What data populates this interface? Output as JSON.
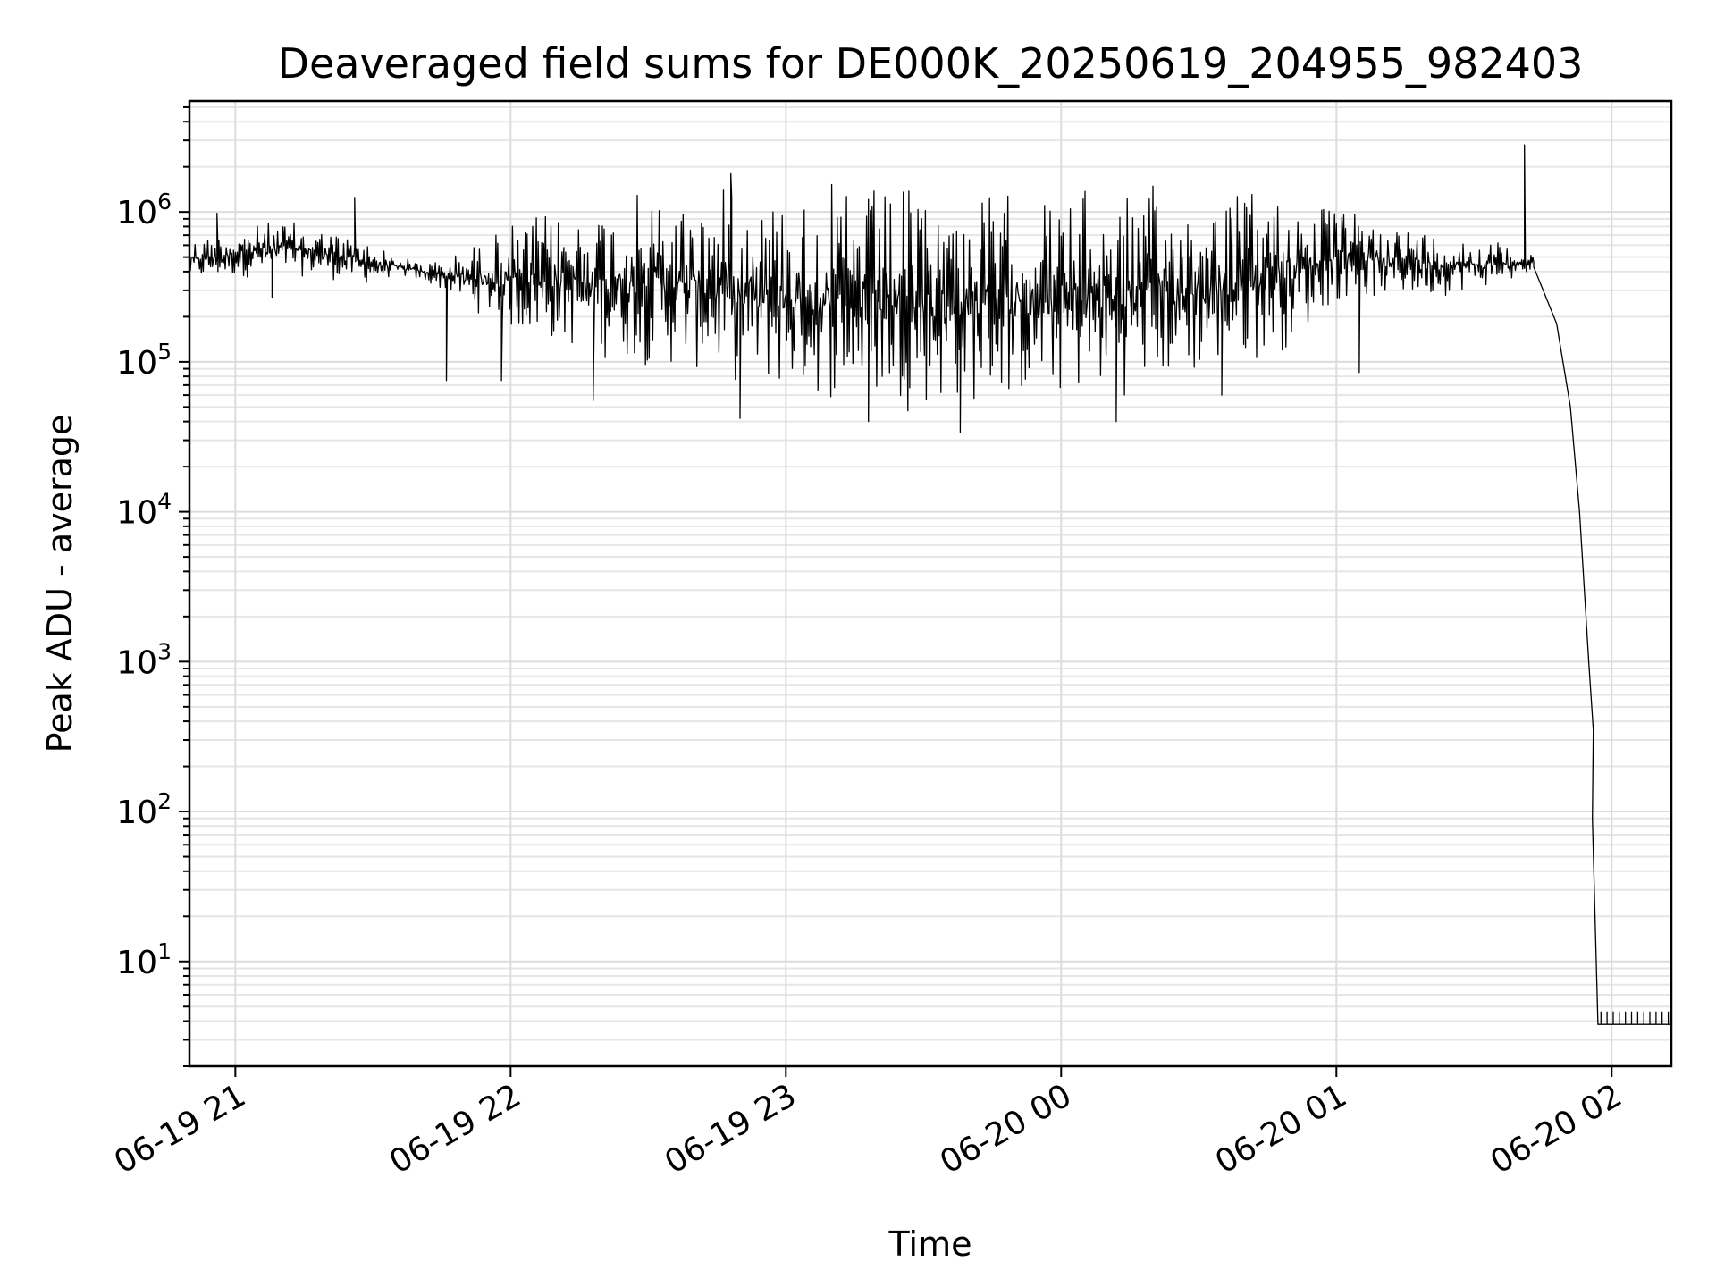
{
  "chart_data": {
    "type": "line",
    "title": "Deaveraged field sums for DE000K_20250619_204955_982403",
    "xlabel": "Time",
    "ylabel": "Peak ADU - average",
    "yscale": "log",
    "xlim": [
      "2025-06-19 20:50",
      "2025-06-20 02:13"
    ],
    "ylim": [
      2,
      5500000
    ],
    "x_ticks": [
      {
        "value": "2025-06-19 21:00",
        "label": "06-19 21"
      },
      {
        "value": "2025-06-19 22:00",
        "label": "06-19 22"
      },
      {
        "value": "2025-06-19 23:00",
        "label": "06-19 23"
      },
      {
        "value": "2025-06-20 00:00",
        "label": "06-20 00"
      },
      {
        "value": "2025-06-20 01:00",
        "label": "06-20 01"
      },
      {
        "value": "2025-06-20 02:00",
        "label": "06-20 02"
      }
    ],
    "y_ticks": [
      {
        "value": 10,
        "base": "10",
        "exp": "1"
      },
      {
        "value": 100,
        "base": "10",
        "exp": "2"
      },
      {
        "value": 1000,
        "base": "10",
        "exp": "3"
      },
      {
        "value": 10000,
        "base": "10",
        "exp": "4"
      },
      {
        "value": 100000,
        "base": "10",
        "exp": "5"
      },
      {
        "value": 1000000,
        "base": "10",
        "exp": "6"
      }
    ],
    "grid": true,
    "series": [
      {
        "color": "#000000",
        "envelope": [
          {
            "t": "2025-06-19 20:50",
            "low": 330000,
            "high": 700000
          },
          {
            "t": "2025-06-19 21:10",
            "low": 380000,
            "high": 900000
          },
          {
            "t": "2025-06-19 21:20",
            "low": 350000,
            "high": 800000
          },
          {
            "t": "2025-06-19 21:30",
            "low": 320000,
            "high": 650000
          },
          {
            "t": "2025-06-19 21:35",
            "low": 380000,
            "high": 500000
          },
          {
            "t": "2025-06-19 21:45",
            "low": 300000,
            "high": 480000
          },
          {
            "t": "2025-06-19 22:00",
            "low": 150000,
            "high": 900000
          },
          {
            "t": "2025-06-19 22:20",
            "low": 100000,
            "high": 1300000
          },
          {
            "t": "2025-06-19 22:40",
            "low": 80000,
            "high": 1550000
          },
          {
            "t": "2025-06-19 23:00",
            "low": 55000,
            "high": 1600000
          },
          {
            "t": "2025-06-19 23:30",
            "low": 45000,
            "high": 1600000
          },
          {
            "t": "2025-06-19 23:50",
            "low": 50000,
            "high": 1500000
          },
          {
            "t": "2025-06-20 00:10",
            "low": 55000,
            "high": 1550000
          },
          {
            "t": "2025-06-20 00:30",
            "low": 70000,
            "high": 1600000
          },
          {
            "t": "2025-06-20 00:50",
            "low": 120000,
            "high": 1500000
          },
          {
            "t": "2025-06-20 01:00",
            "low": 250000,
            "high": 1100000
          },
          {
            "t": "2025-06-20 01:20",
            "low": 260000,
            "high": 800000
          },
          {
            "t": "2025-06-20 01:40",
            "low": 350000,
            "high": 600000
          }
        ],
        "dips": [
          {
            "t": "2025-06-19 21:08",
            "value": 270000
          },
          {
            "t": "2025-06-19 21:46",
            "value": 75000
          },
          {
            "t": "2025-06-19 21:58",
            "value": 75000
          },
          {
            "t": "2025-06-19 22:18",
            "value": 55000
          },
          {
            "t": "2025-06-19 22:50",
            "value": 42000
          },
          {
            "t": "2025-06-19 23:18",
            "value": 40000
          },
          {
            "t": "2025-06-19 23:38",
            "value": 34000
          },
          {
            "t": "2025-06-20 00:12",
            "value": 40000
          },
          {
            "t": "2025-06-20 00:35",
            "value": 60000
          },
          {
            "t": "2025-06-20 01:05",
            "value": 85000
          }
        ],
        "spikes": [
          {
            "t": "2025-06-19 20:56",
            "value": 980000
          },
          {
            "t": "2025-06-19 21:26",
            "value": 1250000
          },
          {
            "t": "2025-06-19 22:48",
            "value": 1800000
          },
          {
            "t": "2025-06-20 01:41",
            "value": 2800000
          }
        ],
        "decay": [
          {
            "t": "2025-06-20 01:43",
            "value": 430000
          },
          {
            "t": "2025-06-20 01:48",
            "value": 180000
          },
          {
            "t": "2025-06-20 01:51",
            "value": 50000
          },
          {
            "t": "2025-06-20 01:53",
            "value": 10000
          },
          {
            "t": "2025-06-20 01:55",
            "value": 1000
          },
          {
            "t": "2025-06-20 01:56",
            "value": 350
          },
          {
            "t": "2025-06-20 01:56",
            "value": 90
          },
          {
            "t": "2025-06-20 01:57",
            "value": 3.8
          }
        ],
        "floor": {
          "t_start": "2025-06-20 01:57",
          "t_end": "2025-06-20 02:13",
          "low": 3.8,
          "high": 4.6
        }
      }
    ]
  }
}
